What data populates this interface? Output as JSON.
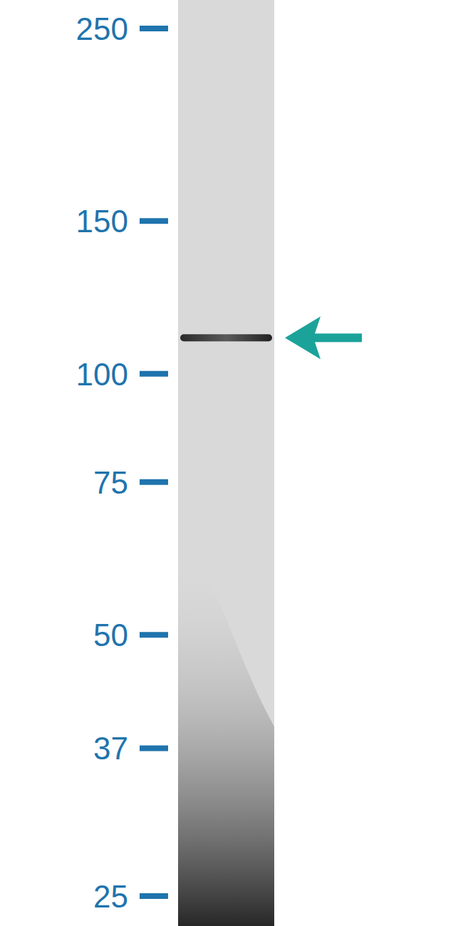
{
  "chart_data": {
    "type": "western_blot",
    "log": "y",
    "ylim": [
      25,
      250
    ],
    "yticks": [
      25,
      37,
      50,
      75,
      100,
      150,
      250
    ],
    "values": [
      110
    ]
  }
}
